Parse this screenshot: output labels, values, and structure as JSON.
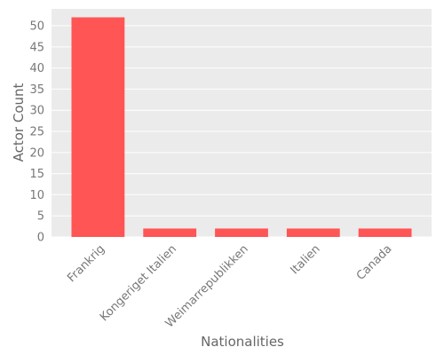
{
  "chart_data": {
    "type": "bar",
    "categories": [
      "Frankrig",
      "Kongeriget Italien",
      "Weimarrepublikken",
      "Italien",
      "Canada"
    ],
    "values": [
      52,
      2,
      2,
      2,
      2
    ],
    "xlabel": "Nationalities",
    "ylabel": "Actor Count",
    "ylim": [
      0,
      54
    ],
    "yticks": [
      0,
      5,
      10,
      15,
      20,
      25,
      30,
      35,
      40,
      45,
      50
    ],
    "grid": true,
    "colors": {
      "bar": "#ff5555",
      "plot_background": "#ebebeb",
      "grid": "#ffffff"
    }
  }
}
